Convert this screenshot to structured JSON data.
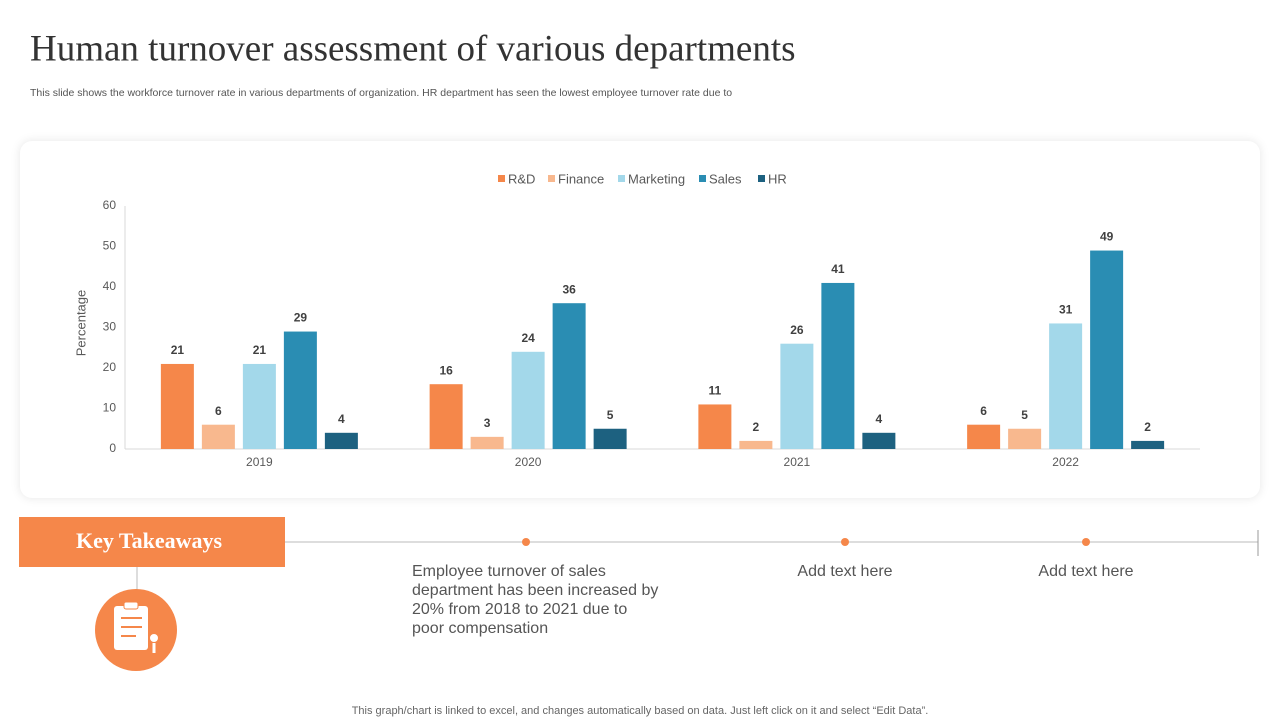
{
  "header": {
    "title": "Human turnover assessment of various departments",
    "subtitle": "This slide shows the workforce turnover rate in various departments of organization. HR department has seen the lowest employee turnover rate due to"
  },
  "chart_data": {
    "type": "bar",
    "y_label": "Percentage",
    "categories": [
      "2019",
      "2020",
      "2021",
      "2022"
    ],
    "series": [
      {
        "name": "R&D",
        "color": "#f5874a",
        "values": [
          21,
          16,
          11,
          6
        ]
      },
      {
        "name": "Finance",
        "color": "#f8b88e",
        "values": [
          6,
          3,
          2,
          5
        ]
      },
      {
        "name": "Marketing",
        "color": "#a3d8ea",
        "values": [
          21,
          24,
          26,
          31
        ]
      },
      {
        "name": "Sales",
        "color": "#2a8db3",
        "values": [
          29,
          36,
          41,
          49
        ]
      },
      {
        "name": "HR",
        "color": "#1d6180",
        "values": [
          4,
          5,
          4,
          2
        ]
      }
    ],
    "ylim": [
      0,
      60
    ],
    "yticks": [
      0,
      10,
      20,
      30,
      40,
      50,
      60
    ],
    "legend": "top",
    "data_labels": true
  },
  "takeaways": {
    "title": "Key Takeaways",
    "items": [
      "Employee turnover  of sales department has been increased by 20% from 2018 to 2021 due to poor compensation",
      "Add text here",
      "Add text here"
    ]
  },
  "footer": "This graph/chart is linked to excel, and changes automatically based on data. Just left click on it and select “Edit Data”."
}
